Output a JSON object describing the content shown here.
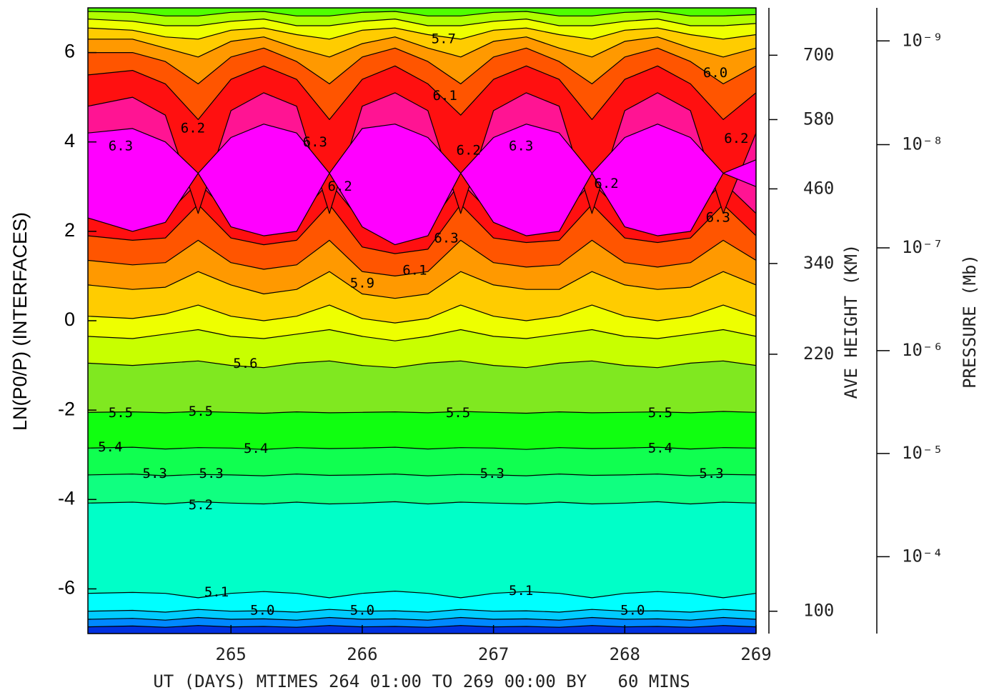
{
  "chart_data": {
    "type": "contour",
    "xlabel": "UT (DAYS) MTIMES 264 01:00 TO 269 00:00 BY   60 MINS",
    "ylabel": "LN(P0/P) (INTERFACES)",
    "xlim": [
      263.91,
      269
    ],
    "ylim": [
      -7,
      7
    ],
    "xticks": [
      265,
      266,
      267,
      268,
      269
    ],
    "yticks": [
      -6,
      -4,
      -2,
      0,
      2,
      4,
      6
    ],
    "x": [
      263.91,
      264.25,
      264.5,
      264.75,
      265,
      265.25,
      265.5,
      265.75,
      266,
      266.25,
      266.5,
      266.75,
      267,
      267.25,
      267.5,
      267.75,
      268,
      268.25,
      268.5,
      268.75,
      269
    ],
    "layers": [
      {
        "color": "#0030e0",
        "lower": [
          -7,
          -7,
          -7,
          -7,
          -7,
          -7,
          -7,
          -7,
          -7,
          -7,
          -7,
          -7,
          -7,
          -7,
          -7,
          -7,
          -7,
          -7,
          -7,
          -7,
          -7
        ]
      },
      {
        "color": "#0088ff",
        "lower": [
          -6.85,
          -6.83,
          -6.86,
          -6.82,
          -6.85,
          -6.84,
          -6.86,
          -6.82,
          -6.85,
          -6.84,
          -6.86,
          -6.82,
          -6.85,
          -6.84,
          -6.86,
          -6.82,
          -6.85,
          -6.84,
          -6.86,
          -6.82,
          -6.85
        ]
      },
      {
        "color": "#00ccff",
        "lower": [
          -6.68,
          -6.66,
          -6.7,
          -6.64,
          -6.68,
          -6.67,
          -6.7,
          -6.64,
          -6.68,
          -6.67,
          -6.7,
          -6.64,
          -6.68,
          -6.67,
          -6.7,
          -6.64,
          -6.68,
          -6.67,
          -6.7,
          -6.64,
          -6.68
        ]
      },
      {
        "color": "#00ffff",
        "lower": [
          -6.5,
          -6.48,
          -6.52,
          -6.46,
          -6.5,
          -6.49,
          -6.52,
          -6.46,
          -6.5,
          -6.49,
          -6.52,
          -6.46,
          -6.5,
          -6.49,
          -6.52,
          -6.46,
          -6.5,
          -6.49,
          -6.52,
          -6.46,
          -6.5
        ]
      },
      {
        "color": "#00ffc8",
        "lower": [
          -6.1,
          -6.08,
          -6.1,
          -6.2,
          -6.1,
          -6.06,
          -6.1,
          -6.2,
          -6.1,
          -6.05,
          -6.1,
          -6.2,
          -6.1,
          -6.06,
          -6.1,
          -6.2,
          -6.1,
          -6.06,
          -6.1,
          -6.2,
          -6.1
        ]
      },
      {
        "color": "#10ff80",
        "lower": [
          -4.08,
          -4.06,
          -4.1,
          -4.05,
          -4.08,
          -4.1,
          -4.06,
          -4.1,
          -4.08,
          -4.05,
          -4.1,
          -4.06,
          -4.08,
          -4.1,
          -4.06,
          -4.1,
          -4.08,
          -4.05,
          -4.1,
          -4.06,
          -4.08
        ]
      },
      {
        "color": "#10ff50",
        "lower": [
          -3.45,
          -3.43,
          -3.47,
          -3.44,
          -3.45,
          -3.47,
          -3.43,
          -3.46,
          -3.45,
          -3.43,
          -3.47,
          -3.44,
          -3.45,
          -3.47,
          -3.43,
          -3.46,
          -3.45,
          -3.43,
          -3.47,
          -3.44,
          -3.45
        ]
      },
      {
        "color": "#10ff10",
        "lower": [
          -2.85,
          -2.83,
          -2.87,
          -2.84,
          -2.85,
          -2.88,
          -2.84,
          -2.86,
          -2.85,
          -2.83,
          -2.87,
          -2.84,
          -2.85,
          -2.88,
          -2.84,
          -2.86,
          -2.85,
          -2.83,
          -2.87,
          -2.84,
          -2.85
        ]
      },
      {
        "color": "#80e820",
        "lower": [
          -2.05,
          -2.04,
          -2.06,
          -2.03,
          -2.05,
          -2.07,
          -2.04,
          -2.06,
          -2.05,
          -2.04,
          -2.06,
          -2.03,
          -2.05,
          -2.07,
          -2.04,
          -2.06,
          -2.05,
          -2.04,
          -2.06,
          -2.03,
          -2.05
        ]
      },
      {
        "color": "#c8ff00",
        "lower": [
          -0.95,
          -1.0,
          -0.95,
          -0.9,
          -1.0,
          -1.05,
          -0.95,
          -0.9,
          -1.0,
          -1.05,
          -0.95,
          -0.9,
          -1.0,
          -1.05,
          -0.95,
          -0.9,
          -1.0,
          -1.05,
          -0.95,
          -0.9,
          -1.0
        ]
      },
      {
        "color": "#eeff00",
        "lower": [
          -0.35,
          -0.4,
          -0.3,
          -0.2,
          -0.35,
          -0.4,
          -0.3,
          -0.2,
          -0.35,
          -0.45,
          -0.35,
          -0.2,
          -0.35,
          -0.4,
          -0.3,
          -0.2,
          -0.35,
          -0.4,
          -0.3,
          -0.2,
          -0.35
        ]
      },
      {
        "color": "#ffcc00",
        "lower": [
          0.1,
          0.05,
          0.15,
          0.35,
          0.1,
          0.0,
          0.1,
          0.35,
          0.05,
          -0.05,
          0.05,
          0.35,
          0.1,
          0.0,
          0.1,
          0.35,
          0.1,
          0.0,
          0.1,
          0.35,
          0.1
        ]
      },
      {
        "color": "#ff9900",
        "lower": [
          0.8,
          0.7,
          0.75,
          1.1,
          0.8,
          0.6,
          0.7,
          1.1,
          0.6,
          0.5,
          0.6,
          1.1,
          0.8,
          0.7,
          0.7,
          1.1,
          0.8,
          0.7,
          0.75,
          1.1,
          0.8
        ]
      },
      {
        "color": "#ff5500",
        "lower": [
          1.35,
          1.25,
          1.3,
          1.8,
          1.3,
          1.15,
          1.25,
          1.8,
          1.1,
          1.0,
          1.1,
          1.8,
          1.3,
          1.2,
          1.25,
          1.8,
          1.3,
          1.2,
          1.3,
          1.8,
          1.35
        ]
      },
      {
        "color": "#ff1010",
        "lower": [
          1.9,
          1.8,
          1.85,
          2.6,
          1.85,
          1.7,
          1.8,
          2.6,
          1.65,
          1.5,
          1.6,
          2.6,
          1.85,
          1.75,
          1.8,
          2.6,
          1.85,
          1.75,
          1.85,
          2.6,
          1.9
        ]
      },
      {
        "color": "#ff1493",
        "lower": [
          2.4,
          2.3,
          2.35,
          3.1,
          2.35,
          2.2,
          2.3,
          3.1,
          2.2,
          2.0,
          2.1,
          3.1,
          2.35,
          2.25,
          2.3,
          3.1,
          2.35,
          2.25,
          2.35,
          3.1,
          2.4
        ]
      },
      {
        "color": "#ff1010",
        "lower": [
          4.8,
          5.0,
          4.6,
          2.4,
          4.7,
          5.1,
          4.8,
          2.4,
          4.8,
          5.1,
          4.7,
          2.4,
          4.7,
          5.1,
          4.8,
          2.4,
          4.7,
          5.1,
          4.7,
          2.4,
          4.2
        ]
      },
      {
        "color": "#ff5500",
        "lower": [
          5.5,
          5.6,
          5.3,
          4.5,
          5.4,
          5.7,
          5.4,
          4.5,
          5.4,
          5.7,
          5.3,
          4.6,
          5.4,
          5.7,
          5.4,
          4.5,
          5.4,
          5.7,
          5.3,
          4.5,
          5.1
        ]
      },
      {
        "color": "#ff9900",
        "lower": [
          6.0,
          6.0,
          5.8,
          5.3,
          5.9,
          6.1,
          5.8,
          5.3,
          5.9,
          6.1,
          5.8,
          5.3,
          5.9,
          6.1,
          5.8,
          5.3,
          5.9,
          6.1,
          5.8,
          5.3,
          5.7
        ]
      },
      {
        "color": "#ffcc00",
        "lower": [
          6.3,
          6.3,
          6.1,
          5.9,
          6.25,
          6.35,
          6.1,
          5.9,
          6.2,
          6.35,
          6.1,
          5.9,
          6.25,
          6.35,
          6.1,
          5.9,
          6.25,
          6.35,
          6.1,
          5.9,
          6.1
        ]
      },
      {
        "color": "#eeff00",
        "lower": [
          6.55,
          6.5,
          6.35,
          6.3,
          6.5,
          6.55,
          6.4,
          6.3,
          6.5,
          6.55,
          6.4,
          6.3,
          6.5,
          6.55,
          6.4,
          6.3,
          6.5,
          6.55,
          6.4,
          6.3,
          6.4
        ]
      },
      {
        "color": "#b0ff00",
        "lower": [
          6.75,
          6.7,
          6.6,
          6.6,
          6.7,
          6.75,
          6.6,
          6.6,
          6.7,
          6.75,
          6.6,
          6.6,
          6.7,
          6.75,
          6.6,
          6.6,
          6.7,
          6.75,
          6.6,
          6.6,
          6.65
        ]
      },
      {
        "color": "#50ff00",
        "lower": [
          6.92,
          6.9,
          6.82,
          6.82,
          6.9,
          6.92,
          6.82,
          6.82,
          6.9,
          6.92,
          6.82,
          6.82,
          6.9,
          6.92,
          6.82,
          6.82,
          6.9,
          6.92,
          6.82,
          6.82,
          6.85
        ]
      },
      {
        "color": "#ff00ff",
        "lower": [
          2.3,
          2.0,
          2.2,
          3.3,
          2.1,
          1.9,
          2.0,
          3.3,
          2.1,
          1.7,
          1.9,
          3.3,
          2.2,
          1.9,
          2.0,
          3.3,
          2.1,
          1.9,
          2.0,
          3.3,
          3.0
        ],
        "upper": [
          4.2,
          4.3,
          4.0,
          3.3,
          4.1,
          4.4,
          4.2,
          3.3,
          4.3,
          4.4,
          4.1,
          3.3,
          4.1,
          4.4,
          4.2,
          3.3,
          4.1,
          4.4,
          4.1,
          3.3,
          3.6
        ]
      }
    ],
    "contour_labels": [
      {
        "label": "5.6",
        "x": 265.11,
        "y": -0.97
      },
      {
        "label": "5.5",
        "x": 264.16,
        "y": -2.07
      },
      {
        "label": "5.5",
        "x": 264.77,
        "y": -2.04
      },
      {
        "label": "5.5",
        "x": 266.73,
        "y": -2.07
      },
      {
        "label": "5.5",
        "x": 268.27,
        "y": -2.07
      },
      {
        "label": "5.4",
        "x": 264.08,
        "y": -2.84
      },
      {
        "label": "5.4",
        "x": 265.19,
        "y": -2.87
      },
      {
        "label": "5.4",
        "x": 268.27,
        "y": -2.86
      },
      {
        "label": "5.3",
        "x": 264.42,
        "y": -3.43
      },
      {
        "label": "5.3",
        "x": 264.85,
        "y": -3.43
      },
      {
        "label": "5.3",
        "x": 266.99,
        "y": -3.43
      },
      {
        "label": "5.3",
        "x": 268.66,
        "y": -3.43
      },
      {
        "label": "5.2",
        "x": 264.77,
        "y": -4.13
      },
      {
        "label": "5.1",
        "x": 264.89,
        "y": -6.08
      },
      {
        "label": "5.1",
        "x": 267.21,
        "y": -6.05
      },
      {
        "label": "5.0",
        "x": 265.24,
        "y": -6.49
      },
      {
        "label": "5.0",
        "x": 266.0,
        "y": -6.49
      },
      {
        "label": "5.0",
        "x": 268.06,
        "y": -6.49
      },
      {
        "label": "5.9",
        "x": 266.0,
        "y": 0.83
      },
      {
        "label": "6.1",
        "x": 266.4,
        "y": 1.12
      },
      {
        "label": "6.2",
        "x": 264.71,
        "y": 4.3
      },
      {
        "label": "6.2",
        "x": 265.83,
        "y": 3.0
      },
      {
        "label": "6.2",
        "x": 266.81,
        "y": 3.8
      },
      {
        "label": "6.2",
        "x": 267.86,
        "y": 3.06
      },
      {
        "label": "6.2",
        "x": 268.85,
        "y": 4.07
      },
      {
        "label": "6.3",
        "x": 264.16,
        "y": 3.9
      },
      {
        "label": "6.3",
        "x": 265.64,
        "y": 3.99
      },
      {
        "label": "6.3",
        "x": 266.64,
        "y": 1.84
      },
      {
        "label": "6.3",
        "x": 267.21,
        "y": 3.9
      },
      {
        "label": "6.3",
        "x": 268.71,
        "y": 2.3
      },
      {
        "label": "5.7",
        "x": 266.62,
        "y": 6.3
      },
      {
        "label": "6.0",
        "x": 268.69,
        "y": 5.54
      },
      {
        "label": "6.1",
        "x": 266.63,
        "y": 5.03
      }
    ],
    "height_axis": {
      "label": "AVE HEIGHT (KM)",
      "ticks": [
        {
          "value": 100,
          "at": -6.5
        },
        {
          "value": 220,
          "at": -0.75
        },
        {
          "value": 340,
          "at": 1.28
        },
        {
          "value": 460,
          "at": 2.95
        },
        {
          "value": 580,
          "at": 4.5
        },
        {
          "value": 700,
          "at": 5.94
        }
      ]
    },
    "pressure_axis": {
      "label": "PRESSURE (Mb)",
      "ticks": [
        {
          "value": 1e-09,
          "label": "10⁻⁹",
          "at": 6.26
        },
        {
          "value": 1e-08,
          "label": "10⁻⁸",
          "at": 3.94
        },
        {
          "value": 1e-07,
          "label": "10⁻⁷",
          "at": 1.63
        },
        {
          "value": 1e-06,
          "label": "10⁻⁶",
          "at": -0.67
        },
        {
          "value": 1e-05,
          "label": "10⁻⁵",
          "at": -2.97
        },
        {
          "value": 0.0001,
          "label": "10⁻⁴",
          "at": -5.28
        }
      ]
    }
  }
}
